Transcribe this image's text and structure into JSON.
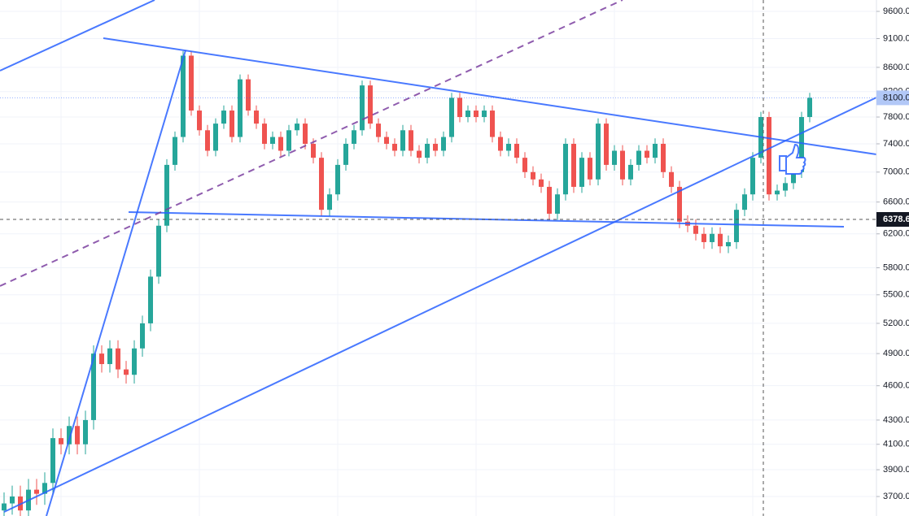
{
  "chart_data": {
    "type": "candlestick",
    "up_color": "#26a69a",
    "down_color": "#ef5350",
    "log_scale": true,
    "grid": true,
    "open": [
      3600,
      3650,
      3700,
      3600,
      3750,
      3720,
      3800,
      4150,
      4100,
      4250,
      4100,
      4300,
      4900,
      4800,
      4950,
      4750,
      4700,
      4950,
      5200,
      5700,
      6300,
      7100,
      7500,
      8800,
      7900,
      7600,
      7300,
      7700,
      7900,
      7500,
      8400,
      7900,
      7700,
      7400,
      7500,
      7300,
      7600,
      7700,
      7400,
      7200,
      6500,
      6700,
      7100,
      7400,
      7600,
      8300,
      7700,
      7500,
      7400,
      7300,
      7600,
      7300,
      7200,
      7400,
      7300,
      7500,
      8100,
      7800,
      7900,
      7800,
      7900,
      7500,
      7300,
      7400,
      7200,
      7000,
      6900,
      6800,
      6450,
      6700,
      7400,
      6800,
      7200,
      6900,
      7700,
      7100,
      7300,
      6900,
      7100,
      7300,
      7200,
      7400,
      7000,
      6800,
      6350,
      6300,
      6200,
      6100,
      6200,
      6050,
      6100,
      6500,
      6700,
      7200,
      7800,
      6700,
      6750,
      6850,
      7000,
      7800
    ],
    "close": [
      3650,
      3700,
      3600,
      3750,
      3720,
      3800,
      4150,
      4100,
      4250,
      4100,
      4300,
      4900,
      4800,
      4950,
      4750,
      4700,
      4950,
      5200,
      5700,
      6300,
      7100,
      7500,
      8800,
      7900,
      7600,
      7300,
      7700,
      7900,
      7500,
      8400,
      7900,
      7700,
      7400,
      7500,
      7300,
      7600,
      7700,
      7400,
      7200,
      6500,
      6700,
      7100,
      7400,
      7600,
      8300,
      7700,
      7500,
      7400,
      7300,
      7600,
      7300,
      7200,
      7400,
      7300,
      7500,
      8100,
      7800,
      7900,
      7800,
      7900,
      7500,
      7300,
      7400,
      7200,
      7000,
      6900,
      6800,
      6450,
      6700,
      7400,
      6800,
      7200,
      6900,
      7700,
      7100,
      7300,
      6900,
      7100,
      7300,
      7200,
      7400,
      7000,
      6800,
      6350,
      6300,
      6200,
      6100,
      6200,
      6050,
      6100,
      6500,
      6700,
      7200,
      7800,
      6700,
      6750,
      6850,
      7000,
      7800,
      8100
    ],
    "high": [
      3730,
      3780,
      3780,
      3830,
      3830,
      3880,
      4230,
      4230,
      4330,
      4330,
      4380,
      4980,
      4980,
      5030,
      5030,
      4830,
      5030,
      5280,
      5780,
      6380,
      7180,
      7580,
      8880,
      8880,
      7980,
      7680,
      7780,
      7980,
      7980,
      8480,
      8480,
      7980,
      7780,
      7580,
      7580,
      7680,
      7780,
      7780,
      7480,
      7280,
      6780,
      7180,
      7480,
      7680,
      8380,
      8380,
      7780,
      7580,
      7480,
      7680,
      7680,
      7380,
      7480,
      7480,
      7580,
      8180,
      8180,
      7980,
      7980,
      7980,
      7980,
      7580,
      7480,
      7480,
      7280,
      7080,
      6980,
      6880,
      6780,
      7480,
      7480,
      7280,
      7280,
      7780,
      7780,
      7380,
      7380,
      7180,
      7380,
      7380,
      7480,
      7480,
      7080,
      6880,
      6430,
      6380,
      6280,
      6280,
      6280,
      6180,
      6580,
      6780,
      7280,
      7880,
      7880,
      6830,
      6930,
      7080,
      7880,
      8180
    ],
    "low": [
      3520,
      3570,
      3520,
      3520,
      3640,
      3640,
      3720,
      4020,
      4020,
      4020,
      4020,
      4220,
      4720,
      4720,
      4670,
      4620,
      4620,
      4870,
      5120,
      5620,
      6220,
      7020,
      7420,
      7820,
      7520,
      7220,
      7220,
      7620,
      7420,
      7420,
      7820,
      7620,
      7320,
      7320,
      7220,
      7220,
      7520,
      7320,
      7120,
      6420,
      6420,
      6620,
      7020,
      7320,
      7520,
      7620,
      7420,
      7320,
      7220,
      7220,
      7220,
      7120,
      7120,
      7220,
      7220,
      7420,
      7720,
      7720,
      7720,
      7720,
      7420,
      7220,
      7220,
      7120,
      6920,
      6820,
      6720,
      6370,
      6370,
      6620,
      6720,
      6720,
      6820,
      6820,
      7020,
      7020,
      6820,
      6820,
      7020,
      7120,
      7120,
      6920,
      6720,
      6270,
      6220,
      6120,
      6020,
      6020,
      5970,
      5970,
      6020,
      6420,
      6620,
      7120,
      6620,
      6620,
      6670,
      6770,
      6920,
      7720
    ],
    "ylim": [
      3561,
      9817
    ],
    "yticks": [
      {
        "value": 9600,
        "label": "9600.00"
      },
      {
        "value": 9100,
        "label": "9100.00"
      },
      {
        "value": 8600,
        "label": "8600.00"
      },
      {
        "value": 8200,
        "label": "8200.00"
      },
      {
        "value": 7800,
        "label": "7800.00"
      },
      {
        "value": 7400,
        "label": "7400.00"
      },
      {
        "value": 7000,
        "label": "7000.00"
      },
      {
        "value": 6600,
        "label": "6600.00"
      },
      {
        "value": 6200,
        "label": "6200.00"
      },
      {
        "value": 5800,
        "label": "5800.00"
      },
      {
        "value": 5500,
        "label": "5500.00"
      },
      {
        "value": 5200,
        "label": "5200.00"
      },
      {
        "value": 4900,
        "label": "4900.00"
      },
      {
        "value": 4600,
        "label": "4600.00"
      },
      {
        "value": 4300,
        "label": "4300.00"
      },
      {
        "value": 4100,
        "label": "4100.00"
      },
      {
        "value": 3900,
        "label": "3900.00"
      },
      {
        "value": 3700,
        "label": "3700.00"
      }
    ],
    "price_label": {
      "value": 8100,
      "label": "8100.00",
      "color": "#b2c8f7"
    },
    "crosshair_label": {
      "value": 6378.6,
      "label": "6378.6",
      "color": "#131722"
    }
  }
}
